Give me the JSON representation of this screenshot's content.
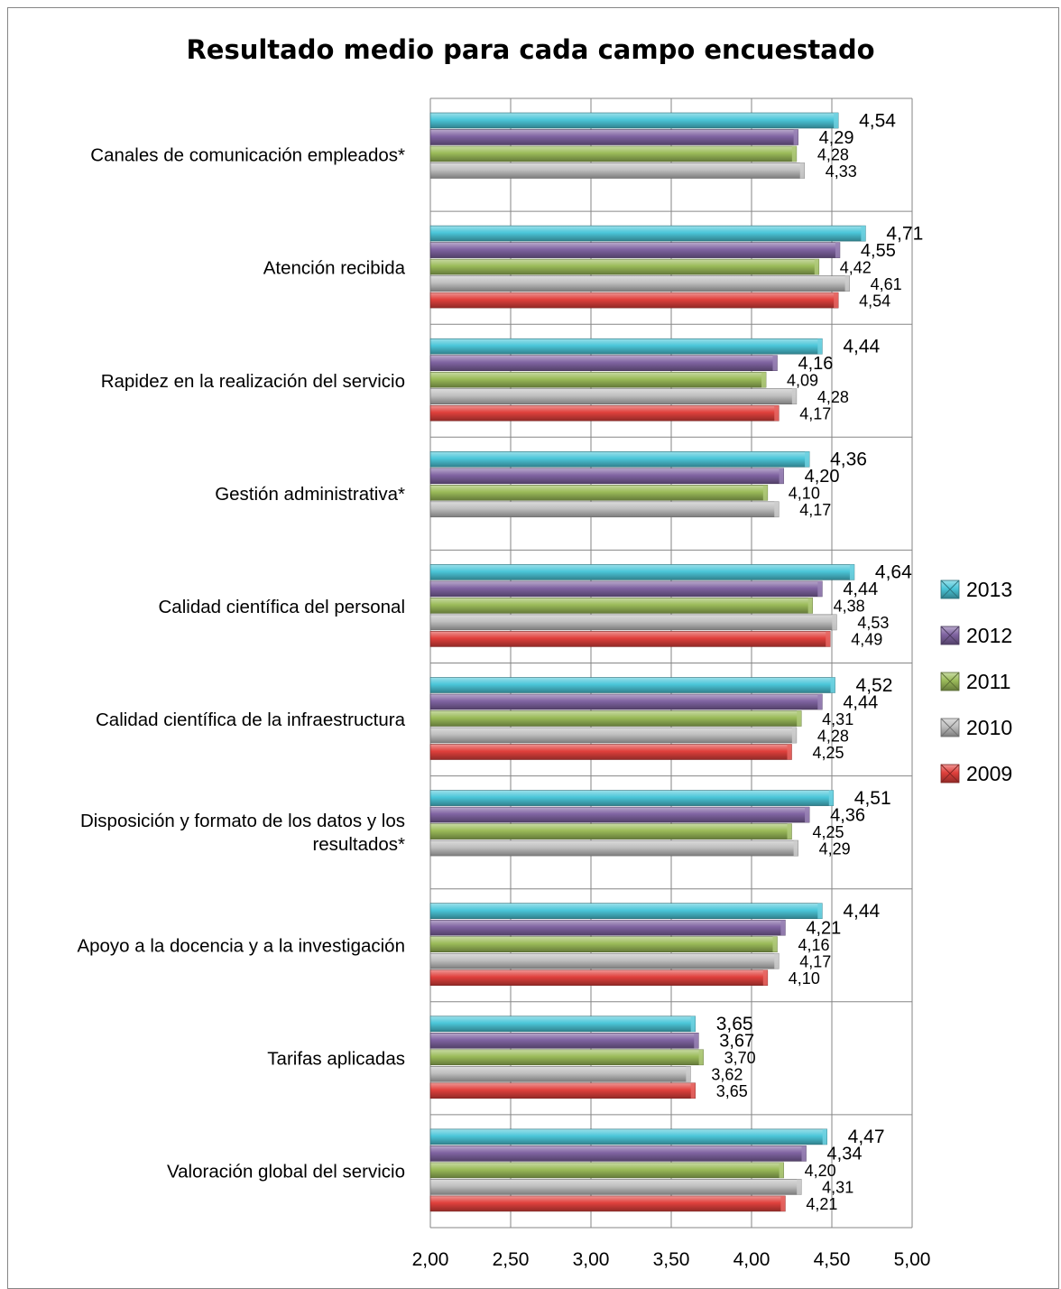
{
  "chart_data": {
    "type": "bar",
    "orientation": "horizontal",
    "title": "Resultado medio para cada campo encuestado",
    "xlim": [
      2.0,
      5.0
    ],
    "x_ticks": [
      "2,00",
      "2,50",
      "3,00",
      "3,50",
      "4,00",
      "4,50",
      "5,00"
    ],
    "x_tick_values": [
      2.0,
      2.5,
      3.0,
      3.5,
      4.0,
      4.5,
      5.0
    ],
    "grid": "vertical",
    "legend_position": "right",
    "categories": [
      [
        "Canales de comunicación empleados*"
      ],
      [
        "Atención recibida"
      ],
      [
        "Rapidez en la realización del servicio"
      ],
      [
        "Gestión administrativa*"
      ],
      [
        "Calidad científica del personal"
      ],
      [
        "Calidad científica de la infraestructura"
      ],
      [
        "Disposición y formato de los datos y los",
        "resultados*"
      ],
      [
        "Apoyo a la docencia y a la investigación"
      ],
      [
        "Tarifas aplicadas"
      ],
      [
        "Valoración global del servicio"
      ]
    ],
    "series": [
      {
        "name": "2013",
        "color": "#4BC6D9",
        "values": [
          4.54,
          4.71,
          4.44,
          4.36,
          4.64,
          4.52,
          4.51,
          4.44,
          3.65,
          4.47
        ],
        "labels": [
          "4,54",
          "4,71",
          "4,44",
          "4,36",
          "4,64",
          "4,52",
          "4,51",
          "4,44",
          "3,65",
          "4,47"
        ]
      },
      {
        "name": "2012",
        "color": "#8064A2",
        "values": [
          4.29,
          4.55,
          4.16,
          4.2,
          4.44,
          4.44,
          4.36,
          4.21,
          3.67,
          4.34
        ],
        "labels": [
          "4,29",
          "4,55",
          "4,16",
          "4,20",
          "4,44",
          "4,44",
          "4,36",
          "4,21",
          "3,67",
          "4,34"
        ]
      },
      {
        "name": "2011",
        "color": "#9BBB59",
        "values": [
          4.28,
          4.42,
          4.09,
          4.1,
          4.38,
          4.31,
          4.25,
          4.16,
          3.7,
          4.2
        ],
        "labels": [
          "4,28",
          "4,42",
          "4,09",
          "4,10",
          "4,38",
          "4,31",
          "4,25",
          "4,16",
          "3,70",
          "4,20"
        ]
      },
      {
        "name": "2010",
        "color": "#BFBFBF",
        "values": [
          4.33,
          4.61,
          4.28,
          4.17,
          4.53,
          4.28,
          4.29,
          4.17,
          3.62,
          4.31
        ],
        "labels": [
          "4,33",
          "4,61",
          "4,28",
          "4,17",
          "4,53",
          "4,28",
          "4,29",
          "4,17",
          "3,62",
          "4,31"
        ]
      },
      {
        "name": "2009",
        "color": "#E0403C",
        "values": [
          null,
          4.54,
          4.17,
          null,
          4.49,
          4.25,
          null,
          4.1,
          3.65,
          4.21
        ],
        "labels": [
          null,
          "4,54",
          "4,17",
          null,
          "4,49",
          "4,25",
          null,
          "4,10",
          "3,65",
          "4,21"
        ]
      }
    ]
  }
}
